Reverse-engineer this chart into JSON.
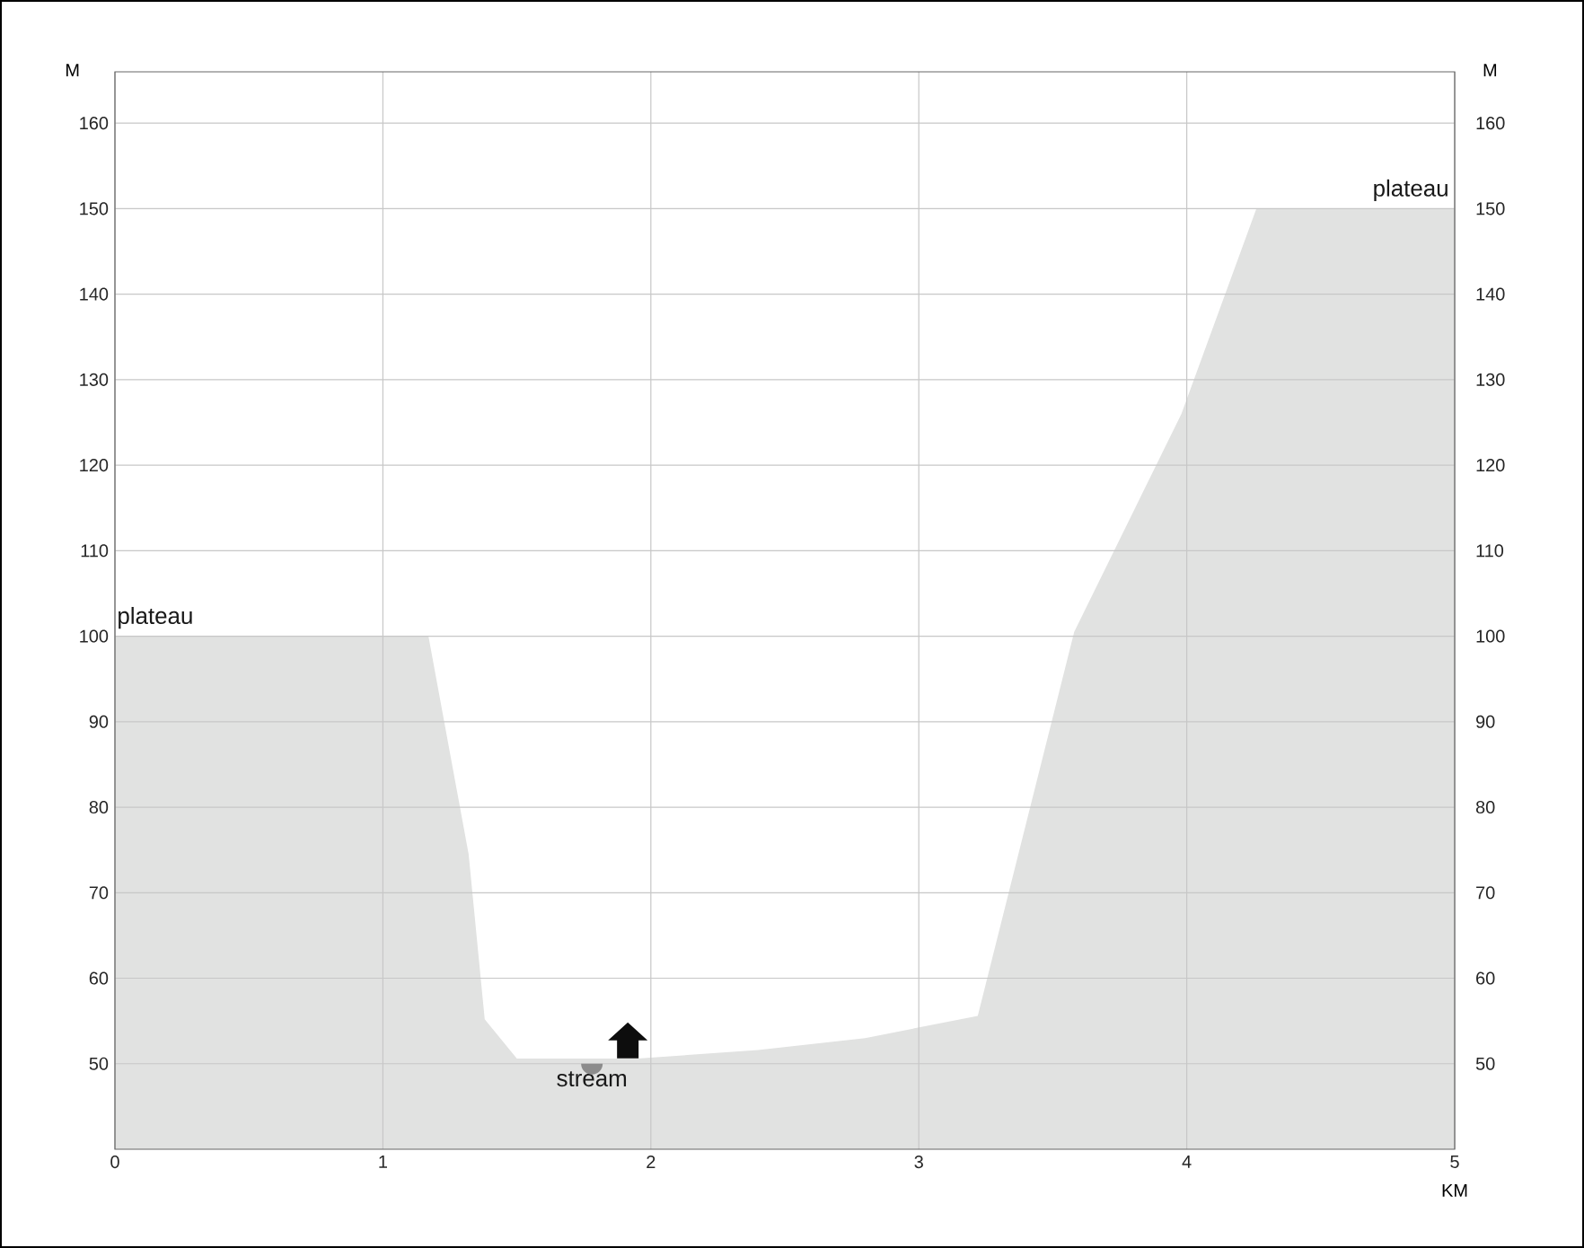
{
  "chart_data": {
    "type": "area",
    "xlabel": "KM",
    "ylabel": "M",
    "y2label": "M",
    "x": [
      0,
      1.17,
      1.32,
      1.38,
      1.5,
      1.95,
      2.4,
      2.8,
      3.22,
      3.58,
      3.98,
      4.26,
      5
    ],
    "series": [
      {
        "color": "#e1e2e1",
        "values": [
          100,
          100,
          74.5,
          55.2,
          50.6,
          50.6,
          51.6,
          53,
          55.6,
          100.5,
          126,
          150,
          150
        ]
      }
    ],
    "xlim": [
      0,
      5
    ],
    "xticks": [
      0,
      1,
      2,
      3,
      4,
      5
    ],
    "ylim": [
      40,
      166
    ],
    "yticks": [
      50,
      60,
      70,
      80,
      90,
      100,
      110,
      120,
      130,
      140,
      150,
      160
    ],
    "y2lim": [
      40,
      166
    ],
    "y2ticks": [
      50,
      60,
      70,
      80,
      90,
      100,
      110,
      120,
      130,
      140,
      150,
      160
    ],
    "grid": true,
    "annotations": [
      {
        "text": "plateau",
        "x": 0,
        "y": 100
      },
      {
        "text": "plateau",
        "x": 5,
        "y": 150
      },
      {
        "text": "stream",
        "x": 1.78,
        "y": 50
      }
    ]
  }
}
